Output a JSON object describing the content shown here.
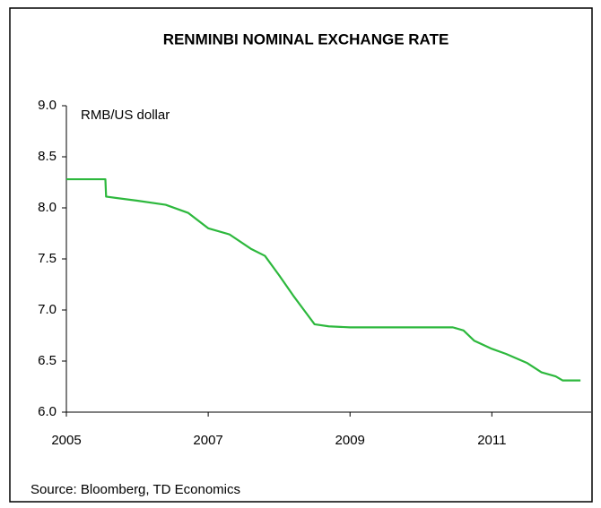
{
  "chart_data": {
    "type": "line",
    "title": "RENMINBI NOMINAL EXCHANGE RATE",
    "y_label": "RMB/US dollar",
    "source": "Source: Bloomberg, TD Economics",
    "x": [
      2005.0,
      2005.55,
      2005.56,
      2006.0,
      2006.4,
      2006.72,
      2007.0,
      2007.3,
      2007.6,
      2007.8,
      2008.0,
      2008.2,
      2008.35,
      2008.5,
      2008.7,
      2009.0,
      2010.0,
      2010.45,
      2010.6,
      2010.75,
      2011.0,
      2011.2,
      2011.5,
      2011.7,
      2011.9,
      2012.0,
      2012.25
    ],
    "series": [
      {
        "name": "RMB/US dollar",
        "color": "#2db83d",
        "values": [
          8.28,
          8.28,
          8.11,
          8.07,
          8.03,
          7.95,
          7.8,
          7.74,
          7.6,
          7.53,
          7.34,
          7.14,
          7.0,
          6.86,
          6.84,
          6.83,
          6.83,
          6.83,
          6.8,
          6.7,
          6.62,
          6.57,
          6.48,
          6.39,
          6.35,
          6.31,
          6.31
        ]
      }
    ],
    "xlim": [
      2005,
      2012.4
    ],
    "xticks": [
      2005,
      2007,
      2009,
      2011
    ],
    "ylim": [
      6.0,
      9.0
    ],
    "yticks": [
      {
        "value": 6.0,
        "label": "6.0"
      },
      {
        "value": 6.5,
        "label": "6.5"
      },
      {
        "value": 7.0,
        "label": "7.0"
      },
      {
        "value": 7.5,
        "label": "7.5"
      },
      {
        "value": 8.0,
        "label": "8.0"
      },
      {
        "value": 8.5,
        "label": "8.5"
      },
      {
        "value": 9.0,
        "label": "9.0"
      }
    ],
    "grid": false
  }
}
